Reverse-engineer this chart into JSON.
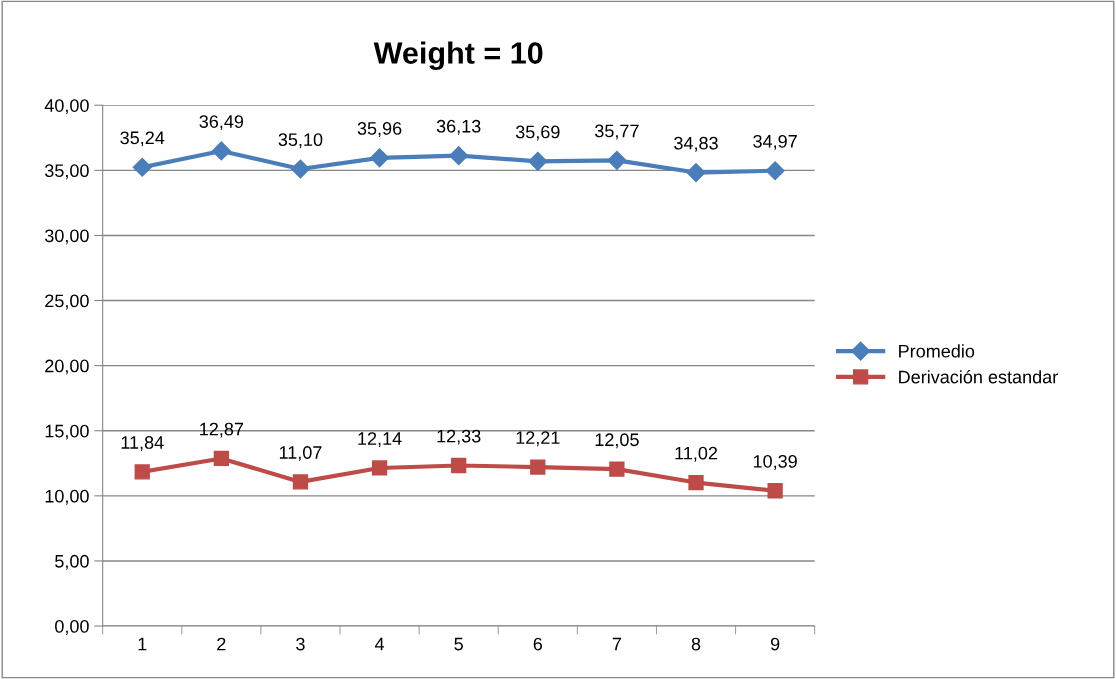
{
  "chart_data": {
    "type": "line",
    "title": "Weight = 10",
    "categories": [
      "1",
      "2",
      "3",
      "4",
      "5",
      "6",
      "7",
      "8",
      "9"
    ],
    "series": [
      {
        "name": "Promedio",
        "color": "#4a7ebb",
        "marker": "diamond",
        "values": [
          35.24,
          36.49,
          35.1,
          35.96,
          36.13,
          35.69,
          35.77,
          34.83,
          34.97
        ],
        "value_labels": [
          "35,24",
          "36,49",
          "35,10",
          "35,96",
          "36,13",
          "35,69",
          "35,77",
          "34,83",
          "34,97"
        ]
      },
      {
        "name": "Derivación estandar",
        "color": "#be4b48",
        "marker": "square",
        "values": [
          11.84,
          12.87,
          11.07,
          12.14,
          12.33,
          12.21,
          12.05,
          11.02,
          10.39
        ],
        "value_labels": [
          "11,84",
          "12,87",
          "11,07",
          "12,14",
          "12,33",
          "12,21",
          "12,05",
          "11,02",
          "10,39"
        ]
      }
    ],
    "ylim": [
      0,
      40
    ],
    "yticks": [
      {
        "value": 0,
        "label": "0,00"
      },
      {
        "value": 5,
        "label": "5,00"
      },
      {
        "value": 10,
        "label": "10,00"
      },
      {
        "value": 15,
        "label": "15,00"
      },
      {
        "value": 20,
        "label": "20,00"
      },
      {
        "value": 25,
        "label": "25,00"
      },
      {
        "value": 30,
        "label": "30,00"
      },
      {
        "value": 35,
        "label": "35,00"
      },
      {
        "value": 40,
        "label": "40,00"
      }
    ],
    "grid": "y",
    "legend": "right",
    "line_style": "solid"
  }
}
